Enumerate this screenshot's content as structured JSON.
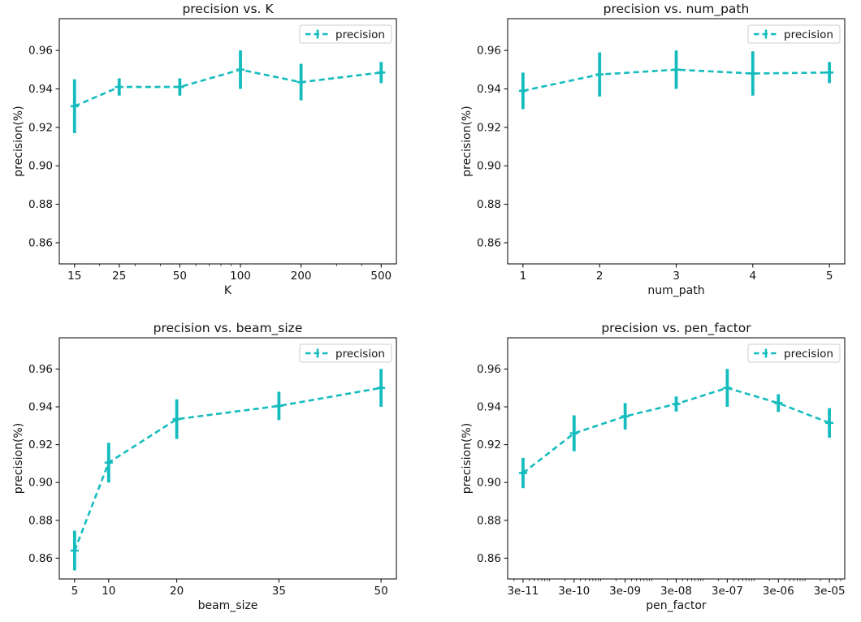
{
  "figure": {
    "background": "#ffffff",
    "accent_color": "#15bcbe",
    "text_color": "#141418",
    "spine_color": "#000000",
    "legend_border_color": "#cccccc",
    "legend_label": "precision",
    "ylabel": "precision(%)",
    "yticks": [
      0.86,
      0.88,
      0.9,
      0.92,
      0.94,
      0.96
    ],
    "ylim": [
      0.849,
      0.9765
    ]
  },
  "chart_data": [
    {
      "type": "line",
      "title": "precision vs. K",
      "xlabel": "K",
      "ylabel": "precision(%)",
      "legend": "precision",
      "legend_position": "upper right",
      "grid": false,
      "xscale": "log",
      "x": [
        15,
        25,
        50,
        100,
        200,
        500
      ],
      "xtick_labels": [
        "15",
        "25",
        "50",
        "100",
        "200",
        "500"
      ],
      "minor_xticks": [
        20,
        30,
        40,
        60,
        70,
        80,
        90,
        300,
        400
      ],
      "xlim": [
        12.6,
        595
      ],
      "y": [
        0.931,
        0.941,
        0.941,
        0.95,
        0.9435,
        0.9485
      ],
      "yerr": [
        0.014,
        0.0045,
        0.0045,
        0.01,
        0.0095,
        0.0055
      ],
      "yticks": [
        0.86,
        0.88,
        0.9,
        0.92,
        0.94,
        0.96
      ],
      "ylim": [
        0.849,
        0.9765
      ]
    },
    {
      "type": "line",
      "title": "precision vs. num_path",
      "xlabel": "num_path",
      "ylabel": "precision(%)",
      "legend": "precision",
      "legend_position": "upper right",
      "grid": false,
      "xscale": "linear",
      "x": [
        1,
        2,
        3,
        4,
        5
      ],
      "xtick_labels": [
        "1",
        "2",
        "3",
        "4",
        "5"
      ],
      "minor_xticks": [],
      "xlim": [
        0.8,
        5.2
      ],
      "y": [
        0.939,
        0.9475,
        0.95,
        0.948,
        0.9485
      ],
      "yerr": [
        0.0095,
        0.0115,
        0.01,
        0.0115,
        0.0055
      ],
      "yticks": [
        0.86,
        0.88,
        0.9,
        0.92,
        0.94,
        0.96
      ],
      "ylim": [
        0.849,
        0.9765
      ]
    },
    {
      "type": "line",
      "title": "precision vs. beam_size",
      "xlabel": "beam_size",
      "ylabel": "precision(%)",
      "legend": "precision",
      "legend_position": "upper right",
      "grid": false,
      "xscale": "linear",
      "x": [
        5,
        10,
        20,
        35,
        50
      ],
      "xtick_labels": [
        "5",
        "10",
        "20",
        "35",
        "50"
      ],
      "minor_xticks": [],
      "xlim": [
        2.75,
        52.25
      ],
      "y": [
        0.864,
        0.9105,
        0.9335,
        0.9405,
        0.95
      ],
      "yerr": [
        0.0105,
        0.0105,
        0.0105,
        0.0075,
        0.01
      ],
      "yticks": [
        0.86,
        0.88,
        0.9,
        0.92,
        0.94,
        0.96
      ],
      "ylim": [
        0.849,
        0.9765
      ]
    },
    {
      "type": "line",
      "title": "precision vs. pen_factor",
      "xlabel": "pen_factor",
      "ylabel": "precision(%)",
      "legend": "precision",
      "legend_position": "upper right",
      "grid": false,
      "xscale": "log",
      "x": [
        3e-11,
        3e-10,
        3e-09,
        3e-08,
        3e-07,
        3e-06,
        3e-05
      ],
      "xtick_labels": [
        "3e-11",
        "3e-10",
        "3e-09",
        "3e-08",
        "3e-07",
        "3e-06",
        "3e-05"
      ],
      "minor_xticks": [
        2e-11,
        4e-11,
        5e-11,
        6e-11,
        7e-11,
        8e-11,
        9e-11,
        1e-10,
        2e-10,
        4e-10,
        5e-10,
        6e-10,
        7e-10,
        8e-10,
        9e-10,
        1e-09,
        2e-09,
        4e-09,
        5e-09,
        6e-09,
        7e-09,
        8e-09,
        9e-09,
        1e-08,
        2e-08,
        4e-08,
        5e-08,
        6e-08,
        7e-08,
        8e-08,
        9e-08,
        1e-07,
        2e-07,
        4e-07,
        5e-07,
        6e-07,
        7e-07,
        8e-07,
        9e-07,
        1e-06,
        2e-06,
        4e-06,
        5e-06,
        6e-06,
        7e-06,
        8e-06,
        9e-06,
        1e-05,
        2e-05,
        4e-05,
        5e-05
      ],
      "xlim": [
        1.5e-11,
        6e-05
      ],
      "y": [
        0.905,
        0.926,
        0.935,
        0.9415,
        0.95,
        0.942,
        0.9315
      ],
      "yerr": [
        0.008,
        0.0095,
        0.007,
        0.004,
        0.01,
        0.0047,
        0.0078
      ],
      "yticks": [
        0.86,
        0.88,
        0.9,
        0.92,
        0.94,
        0.96
      ],
      "ylim": [
        0.849,
        0.9765
      ]
    }
  ]
}
